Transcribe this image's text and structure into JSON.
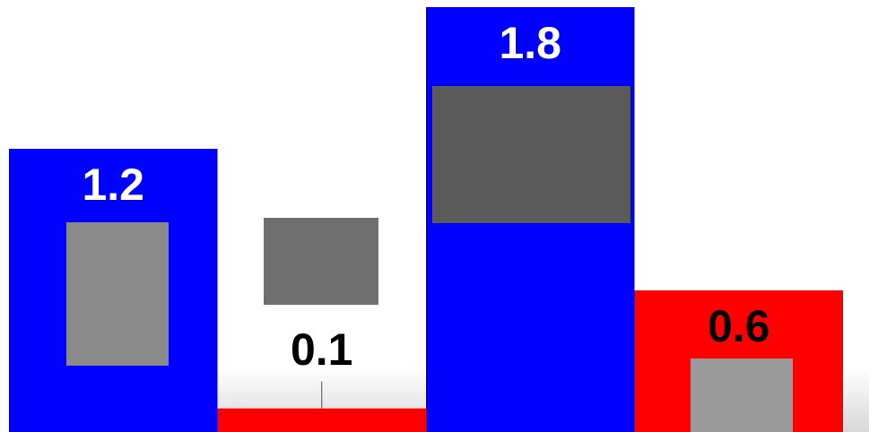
{
  "chart_data": {
    "type": "bar",
    "values": [
      1.2,
      0.1,
      1.8,
      0.6
    ],
    "colors": [
      "#0000ff",
      "#ff0000",
      "#0000ff",
      "#ff0000"
    ]
  }
}
